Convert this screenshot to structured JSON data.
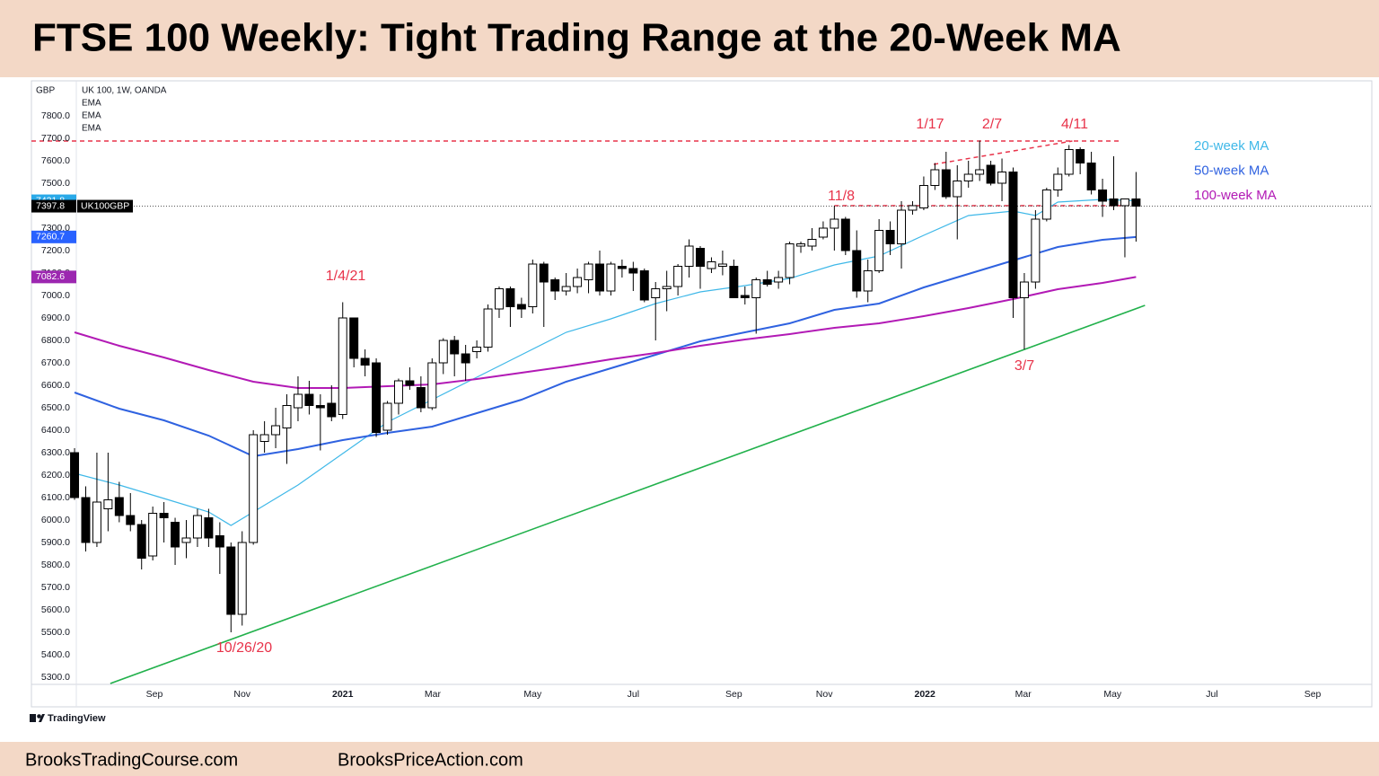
{
  "header": {
    "title": "FTSE 100 Weekly: Tight Trading Range at the 20-Week MA"
  },
  "footer": {
    "brand": "TradingView",
    "links": [
      "BrooksTradingCourse.com",
      "BrooksPriceAction.com"
    ]
  },
  "chart_data": {
    "type": "candlestick",
    "axis_unit": "GBP",
    "symbol_info": "UK 100, 1W, OANDA",
    "indicators": [
      "EMA",
      "EMA",
      "EMA"
    ],
    "symbol_tag": "UK100GBP",
    "xlim": [
      -3.86,
      116.1
    ],
    "ylim": [
      5268,
      7956
    ],
    "yticks": [
      {
        "value": 5300,
        "label": "5300.0"
      },
      {
        "value": 5400,
        "label": "5400.0"
      },
      {
        "value": 5500,
        "label": "5500.0"
      },
      {
        "value": 5600,
        "label": "5600.0"
      },
      {
        "value": 5700,
        "label": "5700.0"
      },
      {
        "value": 5800,
        "label": "5800.0"
      },
      {
        "value": 5900,
        "label": "5900.0"
      },
      {
        "value": 6000,
        "label": "6000.0"
      },
      {
        "value": 6100,
        "label": "6100.0"
      },
      {
        "value": 6200,
        "label": "6200.0"
      },
      {
        "value": 6300,
        "label": "6300.0"
      },
      {
        "value": 6400,
        "label": "6400.0"
      },
      {
        "value": 6500,
        "label": "6500.0"
      },
      {
        "value": 6600,
        "label": "6600.0"
      },
      {
        "value": 6700,
        "label": "6700.0"
      },
      {
        "value": 6800,
        "label": "6800.0"
      },
      {
        "value": 6900,
        "label": "6900.0"
      },
      {
        "value": 7000,
        "label": "7000.0"
      },
      {
        "value": 7100,
        "label": "7100.0"
      },
      {
        "value": 7200,
        "label": "7200.0"
      },
      {
        "value": 7300,
        "label": "7300.0"
      },
      {
        "value": 7400,
        "label": "7400.0"
      },
      {
        "value": 7500,
        "label": "7500.0"
      },
      {
        "value": 7600,
        "label": "7600.0"
      },
      {
        "value": 7700,
        "label": "7700.0"
      },
      {
        "value": 7800,
        "label": "7800.0"
      }
    ],
    "xticks": [
      {
        "value": 7.15,
        "label": "Sep"
      },
      {
        "value": 15.0,
        "label": "Nov"
      },
      {
        "value": 24.0,
        "label": "2021"
      },
      {
        "value": 32.05,
        "label": "Mar"
      },
      {
        "value": 41.0,
        "label": "May"
      },
      {
        "value": 50.0,
        "label": "Jul"
      },
      {
        "value": 59.0,
        "label": "Sep"
      },
      {
        "value": 67.1,
        "label": "Nov"
      },
      {
        "value": 76.1,
        "label": "2022"
      },
      {
        "value": 84.9,
        "label": "Mar"
      },
      {
        "value": 92.9,
        "label": "May"
      },
      {
        "value": 101.8,
        "label": "Jul"
      },
      {
        "value": 110.8,
        "label": "Sep"
      }
    ],
    "x": [
      0,
      1,
      2,
      3,
      4,
      5,
      6,
      7,
      8,
      9,
      10,
      11,
      12,
      13,
      14,
      15,
      16,
      17,
      18,
      19,
      20,
      21,
      22,
      23,
      24,
      25,
      26,
      27,
      28,
      29,
      30,
      31,
      32,
      33,
      34,
      35,
      36,
      37,
      38,
      39,
      40,
      41,
      42,
      43,
      44,
      45,
      46,
      47,
      48,
      49,
      50,
      51,
      52,
      53,
      54,
      55,
      56,
      57,
      58,
      59,
      60,
      61,
      62,
      63,
      64,
      65,
      66,
      67,
      68,
      69,
      70,
      71,
      72,
      73,
      74,
      75,
      76,
      77,
      78,
      79,
      80,
      81,
      82,
      83,
      84,
      85,
      86,
      87,
      88,
      89,
      90,
      91,
      92,
      93,
      94,
      95
    ],
    "open": [
      6300,
      6100,
      5900,
      6050,
      6100,
      6020,
      5980,
      5840,
      6030,
      5990,
      5900,
      5920,
      6010,
      5930,
      5880,
      5580,
      5900,
      6350,
      6380,
      6410,
      6500,
      6560,
      6510,
      6520,
      6470,
      6900,
      6720,
      6700,
      6400,
      6520,
      6620,
      6590,
      6500,
      6700,
      6800,
      6740,
      6750,
      6770,
      6940,
      7030,
      6960,
      6950,
      7140,
      7070,
      7020,
      7040,
      7070,
      7140,
      7020,
      7130,
      7120,
      7110,
      6990,
      7030,
      7040,
      7130,
      7210,
      7120,
      7130,
      7130,
      7000,
      6990,
      7070,
      7060,
      7080,
      7220,
      7220,
      7260,
      7300,
      7340,
      7200,
      7020,
      7110,
      7290,
      7230,
      7380,
      7390,
      7490,
      7560,
      7440,
      7510,
      7540,
      7580,
      7500,
      7550,
      6990,
      7060,
      7340,
      7470,
      7540,
      7650,
      7590,
      7470,
      7430,
      7400,
      7430
    ],
    "high": [
      6320,
      6150,
      6300,
      6300,
      6170,
      6120,
      6000,
      6060,
      6080,
      6010,
      6000,
      6050,
      6050,
      5990,
      5900,
      5950,
      6400,
      6440,
      6500,
      6560,
      6640,
      6620,
      6560,
      6600,
      6970,
      6900,
      6760,
      6720,
      6530,
      6630,
      6680,
      6640,
      6720,
      6810,
      6820,
      6780,
      6800,
      6960,
      7040,
      7040,
      6990,
      7160,
      7150,
      7080,
      7100,
      7120,
      7150,
      7200,
      7150,
      7160,
      7150,
      7120,
      7060,
      7110,
      7140,
      7250,
      7220,
      7170,
      7200,
      7160,
      7040,
      7080,
      7110,
      7110,
      7240,
      7240,
      7300,
      7330,
      7400,
      7350,
      7290,
      7160,
      7340,
      7330,
      7420,
      7420,
      7530,
      7590,
      7640,
      7580,
      7600,
      7690,
      7600,
      7610,
      7570,
      7100,
      7380,
      7480,
      7570,
      7670,
      7660,
      7640,
      7520,
      7620,
      7430,
      7550
    ],
    "low": [
      6090,
      5860,
      5880,
      5950,
      5990,
      5950,
      5780,
      5820,
      5900,
      5800,
      5830,
      5880,
      5880,
      5760,
      5500,
      5530,
      5890,
      6300,
      6320,
      6250,
      6440,
      6470,
      6310,
      6440,
      6450,
      6680,
      6640,
      6370,
      6380,
      6470,
      6580,
      6480,
      6490,
      6650,
      6640,
      6620,
      6720,
      6750,
      6900,
      6860,
      6900,
      6920,
      6860,
      6980,
      7000,
      7010,
      7010,
      7000,
      7000,
      7080,
      7020,
      6970,
      6800,
      6930,
      7000,
      7080,
      7030,
      7100,
      7090,
      6990,
      6960,
      6830,
      7040,
      7030,
      7050,
      7190,
      7200,
      7250,
      7200,
      7180,
      6990,
      6970,
      7100,
      7180,
      7120,
      7360,
      7380,
      7470,
      7430,
      7250,
      7480,
      7510,
      7490,
      7420,
      6900,
      6760,
      7030,
      7330,
      7440,
      7530,
      7540,
      7450,
      7350,
      7380,
      7170,
      7240
    ],
    "close": [
      6100,
      5900,
      6080,
      6090,
      6020,
      5980,
      5830,
      6030,
      6010,
      5880,
      5920,
      6020,
      5920,
      5880,
      5580,
      5900,
      6380,
      6380,
      6420,
      6510,
      6560,
      6510,
      6500,
      6460,
      6900,
      6720,
      6690,
      6390,
      6520,
      6620,
      6600,
      6500,
      6700,
      6800,
      6740,
      6700,
      6770,
      6940,
      7030,
      6950,
      6940,
      7140,
      7060,
      7020,
      7040,
      7080,
      7140,
      7020,
      7140,
      7120,
      7100,
      6980,
      7030,
      7040,
      7130,
      7220,
      7130,
      7150,
      7140,
      6990,
      6990,
      7070,
      7050,
      7080,
      7230,
      7230,
      7250,
      7300,
      7340,
      7200,
      7020,
      7110,
      7290,
      7230,
      7380,
      7400,
      7490,
      7560,
      7440,
      7510,
      7540,
      7560,
      7500,
      7550,
      6990,
      7060,
      7340,
      7470,
      7540,
      7650,
      7590,
      7470,
      7420,
      7400,
      7430,
      7397.8
    ],
    "up_color": "#ffffff",
    "down_color": "#000000",
    "series": [
      {
        "name": "20-week MA",
        "color": "#3fb8e8",
        "label_color": "#29a9e8",
        "x": [
          0,
          4,
          8,
          12,
          14,
          16,
          20,
          24,
          28,
          32,
          36,
          40,
          44,
          48,
          52,
          56,
          60,
          64,
          68,
          72,
          76,
          80,
          84,
          86,
          88,
          92,
          95
        ],
        "values": [
          6208,
          6156,
          6096,
          6036,
          5976,
          6036,
          6156,
          6296,
          6436,
          6536,
          6636,
          6736,
          6836,
          6896,
          6964,
          7016,
          7044,
          7076,
          7136,
          7176,
          7268,
          7356,
          7376,
          7356,
          7416,
          7428,
          7421.8
        ]
      },
      {
        "name": "50-week MA",
        "color": "#2f62e0",
        "label_color": "#2962ff",
        "x": [
          0,
          4,
          8,
          12,
          16,
          20,
          24,
          28,
          32,
          36,
          40,
          44,
          48,
          52,
          56,
          60,
          64,
          68,
          72,
          76,
          80,
          84,
          88,
          92,
          95
        ],
        "values": [
          6568,
          6496,
          6444,
          6376,
          6284,
          6316,
          6356,
          6388,
          6416,
          6476,
          6536,
          6616,
          6676,
          6736,
          6796,
          6836,
          6876,
          6936,
          6964,
          7036,
          7096,
          7156,
          7216,
          7248,
          7260.7
        ]
      },
      {
        "name": "100-week MA",
        "color": "#b21ab5",
        "label_color": "#9c27b0",
        "x": [
          0,
          4,
          8,
          12,
          16,
          20,
          24,
          28,
          32,
          36,
          40,
          44,
          48,
          52,
          56,
          60,
          64,
          68,
          72,
          76,
          80,
          84,
          88,
          92,
          95
        ],
        "values": [
          6836,
          6776,
          6724,
          6668,
          6616,
          6588,
          6588,
          6596,
          6604,
          6628,
          6656,
          6684,
          6716,
          6744,
          6776,
          6804,
          6828,
          6856,
          6876,
          6908,
          6944,
          6984,
          7028,
          7056,
          7082.6
        ]
      }
    ],
    "trendline": {
      "color": "#22b14c",
      "x": [
        3.2,
        95.8
      ],
      "values": [
        5272,
        6956
      ]
    },
    "reference_lines": {
      "color": "#e8334a",
      "lines": [
        {
          "x": [
            -3.86,
            93.7
          ],
          "values": [
            7688,
            7688
          ]
        },
        {
          "x": [
            68,
            94
          ],
          "values": [
            7400,
            7400
          ]
        },
        {
          "x": [
            76.9,
            89.3
          ],
          "values": [
            7584,
            7688
          ]
        }
      ]
    },
    "annotations": [
      "1/17",
      "2/7",
      "4/11",
      "11/8",
      "1/4/21",
      "10/26/20",
      "3/7"
    ]
  }
}
